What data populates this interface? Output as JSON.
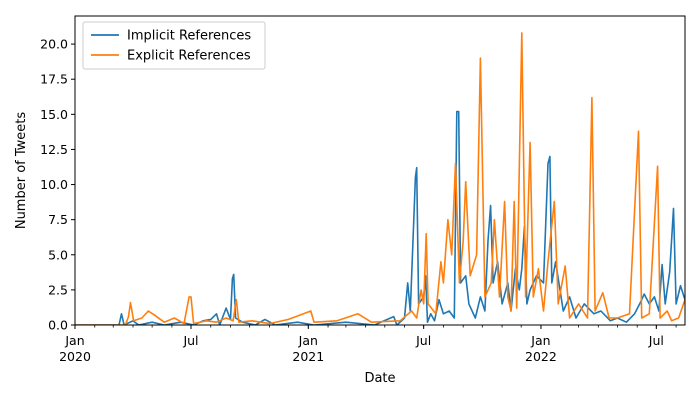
{
  "chart_data": {
    "type": "line",
    "xlabel": "Date",
    "ylabel": "Number of Tweets",
    "xlim": [
      "2020-01-01",
      "2022-08-15"
    ],
    "ylim": [
      0,
      22
    ],
    "yticks": [
      0.0,
      2.5,
      5.0,
      7.5,
      10.0,
      12.5,
      15.0,
      17.5,
      20.0
    ],
    "ytick_labels": [
      "0.0",
      "2.5",
      "5.0",
      "7.5",
      "10.0",
      "12.5",
      "15.0",
      "17.5",
      "20.0"
    ],
    "xticks": [
      {
        "date": "2020-01-01",
        "label": "Jan",
        "sublabel": "2020"
      },
      {
        "date": "2020-07-01",
        "label": "Jul",
        "sublabel": ""
      },
      {
        "date": "2021-01-01",
        "label": "Jan",
        "sublabel": "2021"
      },
      {
        "date": "2021-07-01",
        "label": "Jul",
        "sublabel": ""
      },
      {
        "date": "2022-01-01",
        "label": "Jan",
        "sublabel": "2022"
      },
      {
        "date": "2022-07-01",
        "label": "Jul",
        "sublabel": ""
      }
    ],
    "legend_position": "top-left",
    "series": [
      {
        "name": "Implicit References",
        "color": "#1f77b4",
        "points": [
          [
            "2020-01-01",
            0
          ],
          [
            "2020-03-10",
            0
          ],
          [
            "2020-03-14",
            0.8
          ],
          [
            "2020-03-18",
            0
          ],
          [
            "2020-04-01",
            0.3
          ],
          [
            "2020-04-10",
            0
          ],
          [
            "2020-05-01",
            0.2
          ],
          [
            "2020-05-20",
            0
          ],
          [
            "2020-06-15",
            0.2
          ],
          [
            "2020-07-05",
            0
          ],
          [
            "2020-07-20",
            0.3
          ],
          [
            "2020-08-01",
            0.4
          ],
          [
            "2020-08-10",
            0.8
          ],
          [
            "2020-08-15",
            0
          ],
          [
            "2020-08-25",
            1.2
          ],
          [
            "2020-09-01",
            0.4
          ],
          [
            "2020-09-04",
            3.3
          ],
          [
            "2020-09-06",
            3.6
          ],
          [
            "2020-09-09",
            0.5
          ],
          [
            "2020-09-20",
            0.2
          ],
          [
            "2020-10-10",
            0
          ],
          [
            "2020-10-25",
            0.4
          ],
          [
            "2020-11-10",
            0
          ],
          [
            "2020-12-15",
            0.2
          ],
          [
            "2021-01-10",
            0
          ],
          [
            "2021-03-01",
            0.2
          ],
          [
            "2021-04-15",
            0
          ],
          [
            "2021-05-15",
            0.6
          ],
          [
            "2021-05-20",
            0
          ],
          [
            "2021-06-01",
            0.5
          ],
          [
            "2021-06-06",
            3.0
          ],
          [
            "2021-06-10",
            1.0
          ],
          [
            "2021-06-18",
            10.5
          ],
          [
            "2021-06-20",
            11.2
          ],
          [
            "2021-06-23",
            1.5
          ],
          [
            "2021-07-01",
            2.0
          ],
          [
            "2021-07-04",
            3.5
          ],
          [
            "2021-07-07",
            0.2
          ],
          [
            "2021-07-12",
            0.8
          ],
          [
            "2021-07-18",
            0.3
          ],
          [
            "2021-07-25",
            1.8
          ],
          [
            "2021-08-01",
            0.8
          ],
          [
            "2021-08-10",
            1.0
          ],
          [
            "2021-08-18",
            0.5
          ],
          [
            "2021-08-22",
            15.2
          ],
          [
            "2021-08-25",
            15.2
          ],
          [
            "2021-08-28",
            3.0
          ],
          [
            "2021-09-05",
            3.5
          ],
          [
            "2021-09-10",
            1.5
          ],
          [
            "2021-09-20",
            0.5
          ],
          [
            "2021-09-28",
            2.0
          ],
          [
            "2021-10-05",
            1.0
          ],
          [
            "2021-10-10",
            6.0
          ],
          [
            "2021-10-14",
            8.5
          ],
          [
            "2021-10-18",
            3.0
          ],
          [
            "2021-10-25",
            4.5
          ],
          [
            "2021-11-01",
            1.5
          ],
          [
            "2021-11-10",
            3.0
          ],
          [
            "2021-11-15",
            1.0
          ],
          [
            "2021-11-22",
            4.0
          ],
          [
            "2021-11-28",
            2.5
          ],
          [
            "2021-12-02",
            4.0
          ],
          [
            "2021-12-06",
            7.0
          ],
          [
            "2021-12-10",
            1.5
          ],
          [
            "2021-12-15",
            2.5
          ],
          [
            "2021-12-25",
            3.5
          ],
          [
            "2022-01-05",
            3.0
          ],
          [
            "2022-01-12",
            11.5
          ],
          [
            "2022-01-15",
            12.0
          ],
          [
            "2022-01-18",
            3.0
          ],
          [
            "2022-01-24",
            4.5
          ],
          [
            "2022-02-05",
            1.0
          ],
          [
            "2022-02-15",
            2.0
          ],
          [
            "2022-02-25",
            0.5
          ],
          [
            "2022-03-10",
            1.5
          ],
          [
            "2022-03-25",
            0.8
          ],
          [
            "2022-04-05",
            1.0
          ],
          [
            "2022-04-20",
            0.3
          ],
          [
            "2022-05-01",
            0.5
          ],
          [
            "2022-05-15",
            0.2
          ],
          [
            "2022-05-28",
            0.8
          ],
          [
            "2022-06-05",
            1.5
          ],
          [
            "2022-06-12",
            2.2
          ],
          [
            "2022-06-20",
            1.5
          ],
          [
            "2022-06-28",
            2.0
          ],
          [
            "2022-07-05",
            1.0
          ],
          [
            "2022-07-10",
            4.3
          ],
          [
            "2022-07-15",
            1.5
          ],
          [
            "2022-07-22",
            3.8
          ],
          [
            "2022-07-28",
            8.3
          ],
          [
            "2022-08-01",
            1.5
          ],
          [
            "2022-08-08",
            2.8
          ],
          [
            "2022-08-15",
            1.8
          ]
        ]
      },
      {
        "name": "Explicit References",
        "color": "#ff7f0e",
        "points": [
          [
            "2020-01-01",
            0
          ],
          [
            "2020-03-20",
            0
          ],
          [
            "2020-03-25",
            0.6
          ],
          [
            "2020-03-28",
            1.6
          ],
          [
            "2020-04-02",
            0.3
          ],
          [
            "2020-04-15",
            0.5
          ],
          [
            "2020-04-25",
            1.0
          ],
          [
            "2020-05-05",
            0.7
          ],
          [
            "2020-05-20",
            0.2
          ],
          [
            "2020-06-05",
            0.5
          ],
          [
            "2020-06-20",
            0.1
          ],
          [
            "2020-06-28",
            2.0
          ],
          [
            "2020-07-01",
            2.0
          ],
          [
            "2020-07-05",
            0.1
          ],
          [
            "2020-07-25",
            0.3
          ],
          [
            "2020-08-10",
            0.2
          ],
          [
            "2020-08-25",
            0.5
          ],
          [
            "2020-09-05",
            0.3
          ],
          [
            "2020-09-10",
            1.8
          ],
          [
            "2020-09-14",
            0.2
          ],
          [
            "2020-10-05",
            0.3
          ],
          [
            "2020-11-01",
            0.1
          ],
          [
            "2020-12-01",
            0.4
          ],
          [
            "2021-01-05",
            1.0
          ],
          [
            "2021-01-10",
            0.2
          ],
          [
            "2021-02-15",
            0.3
          ],
          [
            "2021-03-20",
            0.8
          ],
          [
            "2021-04-10",
            0.2
          ],
          [
            "2021-05-25",
            0.3
          ],
          [
            "2021-06-12",
            1.0
          ],
          [
            "2021-06-20",
            0.5
          ],
          [
            "2021-06-27",
            2.5
          ],
          [
            "2021-07-01",
            1.5
          ],
          [
            "2021-07-05",
            6.5
          ],
          [
            "2021-07-08",
            1.5
          ],
          [
            "2021-07-20",
            0.8
          ],
          [
            "2021-07-28",
            4.5
          ],
          [
            "2021-08-01",
            3.0
          ],
          [
            "2021-08-08",
            7.5
          ],
          [
            "2021-08-14",
            5.0
          ],
          [
            "2021-08-20",
            11.5
          ],
          [
            "2021-08-26",
            3.0
          ],
          [
            "2021-09-01",
            6.0
          ],
          [
            "2021-09-05",
            10.2
          ],
          [
            "2021-09-12",
            3.5
          ],
          [
            "2021-09-22",
            5.0
          ],
          [
            "2021-09-28",
            19.0
          ],
          [
            "2021-10-05",
            2.0
          ],
          [
            "2021-10-15",
            3.0
          ],
          [
            "2021-10-20",
            7.5
          ],
          [
            "2021-10-28",
            2.0
          ],
          [
            "2021-11-05",
            8.8
          ],
          [
            "2021-11-10",
            2.0
          ],
          [
            "2021-11-15",
            1.0
          ],
          [
            "2021-11-20",
            8.8
          ],
          [
            "2021-11-24",
            1.2
          ],
          [
            "2021-12-02",
            20.8
          ],
          [
            "2021-12-08",
            2.0
          ],
          [
            "2021-12-15",
            13.0
          ],
          [
            "2021-12-20",
            2.0
          ],
          [
            "2021-12-28",
            4.0
          ],
          [
            "2022-01-05",
            1.0
          ],
          [
            "2022-01-12",
            4.5
          ],
          [
            "2022-01-22",
            8.8
          ],
          [
            "2022-01-28",
            1.5
          ],
          [
            "2022-02-08",
            4.2
          ],
          [
            "2022-02-15",
            0.5
          ],
          [
            "2022-03-01",
            1.5
          ],
          [
            "2022-03-15",
            0.5
          ],
          [
            "2022-03-22",
            16.2
          ],
          [
            "2022-03-27",
            1.0
          ],
          [
            "2022-04-08",
            2.3
          ],
          [
            "2022-04-18",
            0.5
          ],
          [
            "2022-05-01",
            0.5
          ],
          [
            "2022-05-20",
            0.8
          ],
          [
            "2022-06-03",
            13.8
          ],
          [
            "2022-06-08",
            0.5
          ],
          [
            "2022-06-20",
            0.8
          ],
          [
            "2022-07-03",
            11.3
          ],
          [
            "2022-07-07",
            0.5
          ],
          [
            "2022-07-18",
            1.0
          ],
          [
            "2022-07-25",
            0.3
          ],
          [
            "2022-08-05",
            0.5
          ],
          [
            "2022-08-15",
            1.8
          ]
        ]
      }
    ]
  }
}
